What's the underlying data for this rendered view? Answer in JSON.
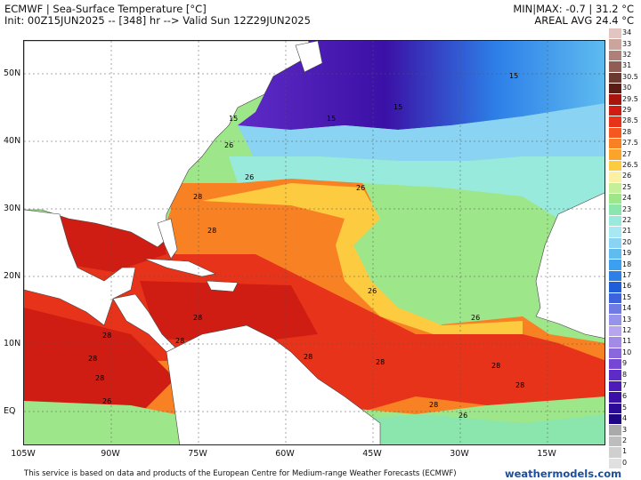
{
  "header": {
    "title": "ECMWF | Sea-Surface Temperature [°C]",
    "init": "Init: 00Z15JUN2025 -- [348] hr --> Valid Sun 12Z29JUN2025",
    "minmax": "MIN|MAX: -0.7 | 31.2 °C",
    "areal": "AREAL AVG 24.4 °C"
  },
  "lat_labels": [
    "50N",
    "40N",
    "30N",
    "20N",
    "10N",
    "EQ"
  ],
  "lon_labels": [
    "105W",
    "90W",
    "75W",
    "60W",
    "45W",
    "30W",
    "15W"
  ],
  "contour_labels": [
    "15",
    "15",
    "15",
    "15",
    "26",
    "26",
    "26",
    "28",
    "28",
    "26",
    "28",
    "26",
    "28",
    "28",
    "28",
    "28",
    "28",
    "28",
    "28",
    "28",
    "28",
    "26",
    "26"
  ],
  "colorbar": [
    {
      "label": "34",
      "color": "#e2c5c0"
    },
    {
      "label": "33",
      "color": "#cba49c"
    },
    {
      "label": "32",
      "color": "#ae8077"
    },
    {
      "label": "31",
      "color": "#8f5d53"
    },
    {
      "label": "30.5",
      "color": "#6a3a30"
    },
    {
      "label": "30",
      "color": "#5a1d16"
    },
    {
      "label": "29.5",
      "color": "#a8150f"
    },
    {
      "label": "29",
      "color": "#cf1d14"
    },
    {
      "label": "28.5",
      "color": "#e8331b"
    },
    {
      "label": "28",
      "color": "#f4571f"
    },
    {
      "label": "27.5",
      "color": "#f88124"
    },
    {
      "label": "27",
      "color": "#fba42c"
    },
    {
      "label": "26.5",
      "color": "#fdcb40"
    },
    {
      "label": "26",
      "color": "#fbf0a4"
    },
    {
      "label": "25",
      "color": "#c5ef98"
    },
    {
      "label": "24",
      "color": "#9ee68a"
    },
    {
      "label": "23",
      "color": "#8ae6ad"
    },
    {
      "label": "22",
      "color": "#98eadd"
    },
    {
      "label": "21",
      "color": "#a8e8f3"
    },
    {
      "label": "20",
      "color": "#8ad3f2"
    },
    {
      "label": "19",
      "color": "#5fbcef"
    },
    {
      "label": "18",
      "color": "#3c9ff0"
    },
    {
      "label": "17",
      "color": "#2d7fe8"
    },
    {
      "label": "16",
      "color": "#1f5ed9"
    },
    {
      "label": "15",
      "color": "#3d63dc"
    },
    {
      "label": "14",
      "color": "#6f7ae3"
    },
    {
      "label": "13",
      "color": "#9893ea"
    },
    {
      "label": "12",
      "color": "#b7a6ef"
    },
    {
      "label": "11",
      "color": "#a28ae6"
    },
    {
      "label": "10",
      "color": "#8a68dc"
    },
    {
      "label": "9",
      "color": "#7547d3"
    },
    {
      "label": "8",
      "color": "#5f2bc6"
    },
    {
      "label": "7",
      "color": "#4e1ab8"
    },
    {
      "label": "6",
      "color": "#3b10a6"
    },
    {
      "label": "5",
      "color": "#2a0a96"
    },
    {
      "label": "4",
      "color": "#1d0583"
    },
    {
      "label": "3",
      "color": "#aaaaaa"
    },
    {
      "label": "2",
      "color": "#bdbdbd"
    },
    {
      "label": "1",
      "color": "#cfcfcf"
    },
    {
      "label": "0",
      "color": "#e0e0e0"
    }
  ],
  "footer": {
    "credit": "This service is based on data and products of the European Centre for Medium-range Weather Forecasts (ECMWF)",
    "brand": "weathermodels.com"
  }
}
